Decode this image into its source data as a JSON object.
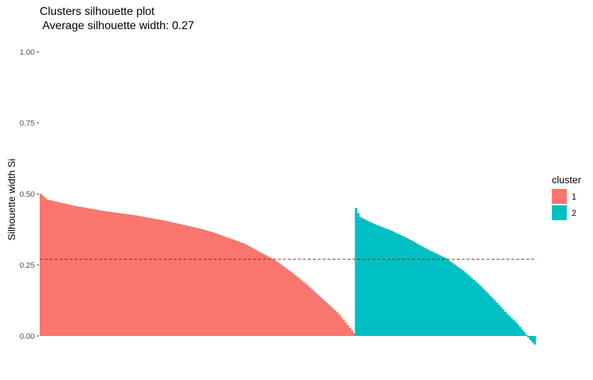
{
  "chart_data": {
    "type": "bar",
    "title": "Clusters silhouette plot",
    "subtitle": " Average silhouette width: 0.27",
    "xlabel": "",
    "ylabel": "Silhouette width Si",
    "ylim": [
      0,
      1
    ],
    "yticks": [
      "0.00",
      "0.25",
      "0.50",
      "0.75",
      "1.00"
    ],
    "ytick_values": [
      0,
      0.25,
      0.5,
      0.75,
      1
    ],
    "grid": false,
    "average_line": 0.27,
    "average_line_color": "#cc0000",
    "legend": {
      "title": "cluster",
      "placement": "right"
    },
    "series": [
      {
        "name": "1",
        "color": "#F8766D",
        "count": 150,
        "profile": [
          [
            0,
            0.5
          ],
          [
            0.02,
            0.48
          ],
          [
            0.1,
            0.46
          ],
          [
            0.2,
            0.44
          ],
          [
            0.3,
            0.425
          ],
          [
            0.4,
            0.405
          ],
          [
            0.5,
            0.38
          ],
          [
            0.55,
            0.365
          ],
          [
            0.6,
            0.345
          ],
          [
            0.65,
            0.325
          ],
          [
            0.7,
            0.295
          ],
          [
            0.75,
            0.265
          ],
          [
            0.8,
            0.225
          ],
          [
            0.85,
            0.18
          ],
          [
            0.9,
            0.13
          ],
          [
            0.95,
            0.08
          ],
          [
            1,
            0.01
          ]
        ]
      },
      {
        "name": "2",
        "color": "#00BFC4",
        "count": 86,
        "profile": [
          [
            0,
            0.45
          ],
          [
            0.02,
            0.42
          ],
          [
            0.05,
            0.41
          ],
          [
            0.1,
            0.395
          ],
          [
            0.2,
            0.37
          ],
          [
            0.3,
            0.34
          ],
          [
            0.4,
            0.305
          ],
          [
            0.5,
            0.275
          ],
          [
            0.6,
            0.23
          ],
          [
            0.7,
            0.175
          ],
          [
            0.8,
            0.11
          ],
          [
            0.85,
            0.075
          ],
          [
            0.9,
            0.045
          ],
          [
            0.94,
            0.015
          ],
          [
            0.97,
            -0.01
          ],
          [
            1,
            -0.03
          ]
        ]
      }
    ]
  }
}
